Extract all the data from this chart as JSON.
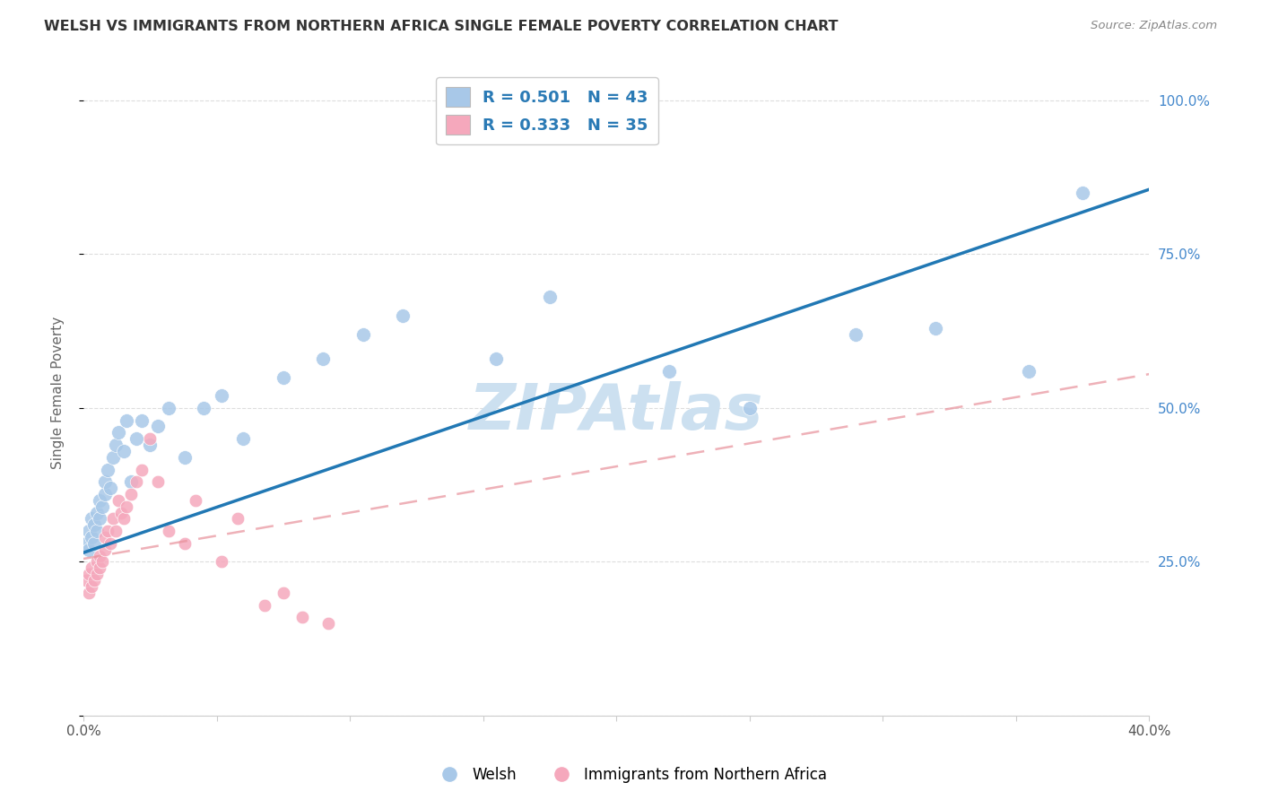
{
  "title": "WELSH VS IMMIGRANTS FROM NORTHERN AFRICA SINGLE FEMALE POVERTY CORRELATION CHART",
  "source": "Source: ZipAtlas.com",
  "ylabel": "Single Female Poverty",
  "yticks": [
    0.0,
    0.25,
    0.5,
    0.75,
    1.0
  ],
  "ytick_labels_right": [
    "",
    "25.0%",
    "50.0%",
    "75.0%",
    "100.0%"
  ],
  "xlim": [
    0.0,
    0.4
  ],
  "ylim": [
    0.0,
    1.05
  ],
  "welsh_R": 0.501,
  "welsh_N": 43,
  "immigrant_R": 0.333,
  "immigrant_N": 35,
  "welsh_color": "#a8c8e8",
  "immigrant_color": "#f5a8bc",
  "trend_welsh_color": "#2178b4",
  "trend_immigrant_color": "#e8909a",
  "watermark_color": "#cce0f0",
  "legend_welsh": "Welsh",
  "legend_immigrant": "Immigrants from Northern Africa",
  "welsh_x": [
    0.001,
    0.002,
    0.002,
    0.003,
    0.003,
    0.004,
    0.004,
    0.005,
    0.005,
    0.006,
    0.006,
    0.007,
    0.008,
    0.008,
    0.009,
    0.01,
    0.011,
    0.012,
    0.013,
    0.015,
    0.016,
    0.018,
    0.02,
    0.022,
    0.025,
    0.028,
    0.032,
    0.038,
    0.045,
    0.052,
    0.06,
    0.075,
    0.09,
    0.105,
    0.12,
    0.155,
    0.175,
    0.22,
    0.25,
    0.29,
    0.32,
    0.355,
    0.375
  ],
  "welsh_y": [
    0.28,
    0.3,
    0.27,
    0.29,
    0.32,
    0.31,
    0.28,
    0.33,
    0.3,
    0.35,
    0.32,
    0.34,
    0.36,
    0.38,
    0.4,
    0.37,
    0.42,
    0.44,
    0.46,
    0.43,
    0.48,
    0.38,
    0.45,
    0.48,
    0.44,
    0.47,
    0.5,
    0.42,
    0.5,
    0.52,
    0.45,
    0.55,
    0.58,
    0.62,
    0.65,
    0.58,
    0.68,
    0.56,
    0.5,
    0.62,
    0.63,
    0.56,
    0.85
  ],
  "immigrant_x": [
    0.001,
    0.002,
    0.002,
    0.003,
    0.003,
    0.004,
    0.005,
    0.005,
    0.006,
    0.006,
    0.007,
    0.008,
    0.008,
    0.009,
    0.01,
    0.011,
    0.012,
    0.013,
    0.014,
    0.015,
    0.016,
    0.018,
    0.02,
    0.022,
    0.025,
    0.028,
    0.032,
    0.038,
    0.042,
    0.052,
    0.058,
    0.068,
    0.075,
    0.082,
    0.092
  ],
  "immigrant_y": [
    0.22,
    0.23,
    0.2,
    0.21,
    0.24,
    0.22,
    0.25,
    0.23,
    0.24,
    0.26,
    0.25,
    0.27,
    0.29,
    0.3,
    0.28,
    0.32,
    0.3,
    0.35,
    0.33,
    0.32,
    0.34,
    0.36,
    0.38,
    0.4,
    0.45,
    0.38,
    0.3,
    0.28,
    0.35,
    0.25,
    0.32,
    0.18,
    0.2,
    0.16,
    0.15
  ],
  "welsh_trend_x0": 0.0,
  "welsh_trend_y0": 0.265,
  "welsh_trend_x1": 0.4,
  "welsh_trend_y1": 0.855,
  "immigrant_trend_x0": 0.0,
  "immigrant_trend_y0": 0.255,
  "immigrant_trend_x1": 0.4,
  "immigrant_trend_y1": 0.555
}
